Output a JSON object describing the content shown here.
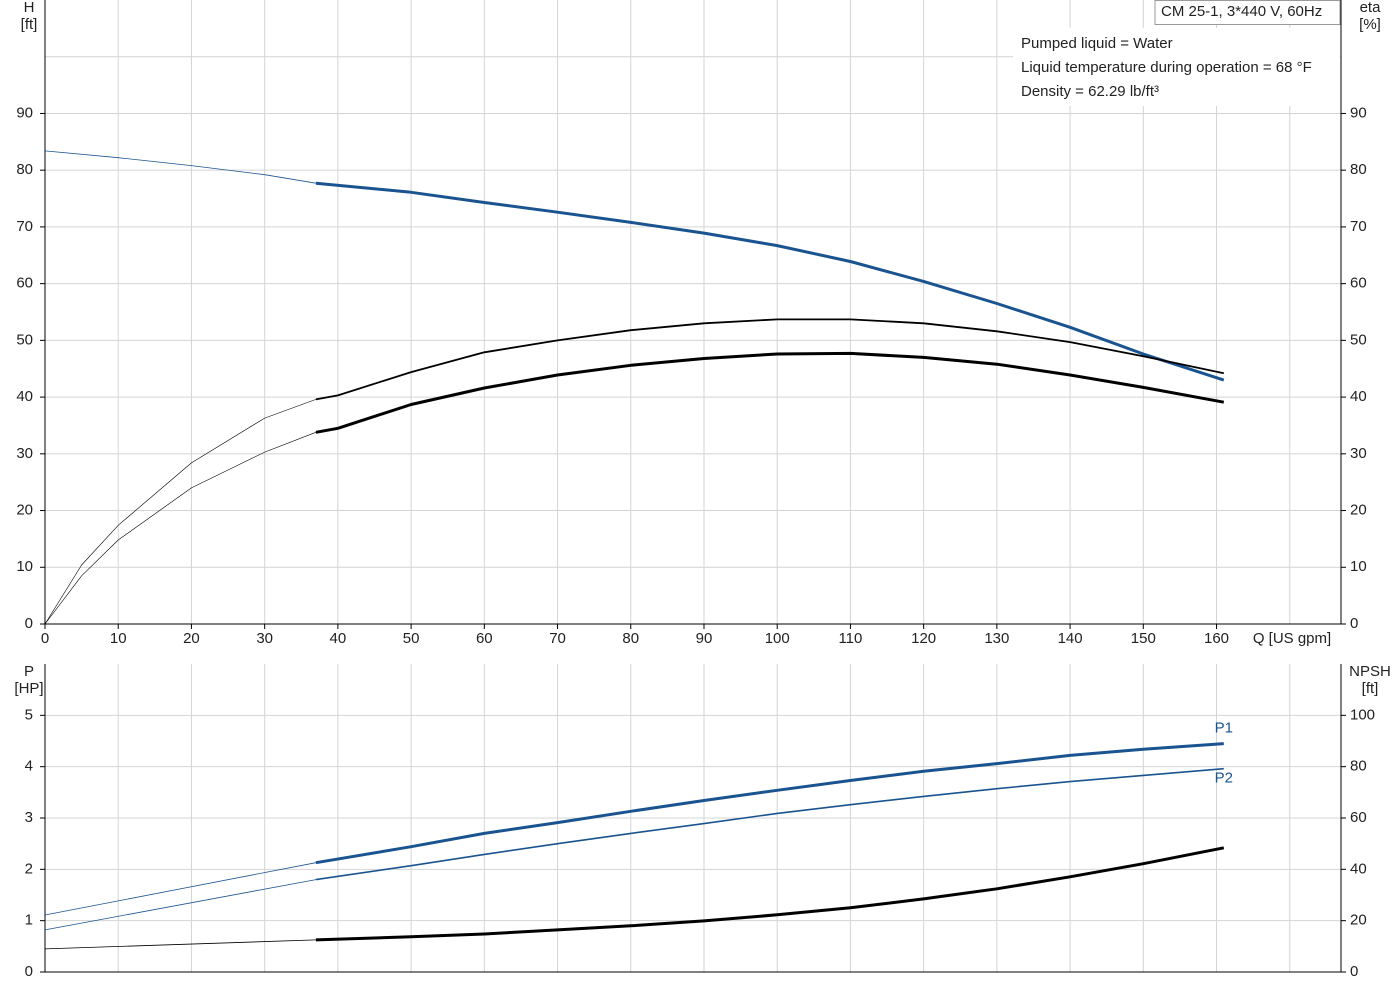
{
  "chart_data": [
    {
      "type": "line",
      "title": "CM 25-1, 3*440 V, 60Hz",
      "notes": [
        "Pumped liquid = Water",
        "Liquid temperature during operation = 68 °F",
        "Density = 62.29 lb/ft³"
      ],
      "ylabel": [
        "H",
        "[ft]"
      ],
      "y2label": [
        "eta",
        "[%]"
      ],
      "xlabel": "Q [US gpm]",
      "xlim": [
        0,
        177
      ],
      "ylim": [
        0,
        110
      ],
      "y2lim": [
        0,
        110
      ],
      "xticks": [
        0,
        10,
        20,
        30,
        40,
        50,
        60,
        70,
        80,
        90,
        100,
        110,
        120,
        130,
        140,
        150,
        160
      ],
      "xgrid": [
        0,
        10,
        20,
        30,
        40,
        50,
        60,
        70,
        80,
        90,
        100,
        110,
        120,
        130,
        140,
        150,
        160,
        170
      ],
      "yticks": [
        0,
        10,
        20,
        30,
        40,
        50,
        60,
        70,
        80,
        90
      ],
      "ygrid": [
        0,
        10,
        20,
        30,
        40,
        50,
        60,
        70,
        80,
        90,
        100
      ],
      "y2ticks": [
        0,
        10,
        20,
        30,
        40,
        50,
        60,
        70,
        80,
        90
      ],
      "series": [
        {
          "color": "#1a5490",
          "line_width": 0.8,
          "x": [
            0,
            10,
            20,
            30,
            37
          ],
          "values": [
            83.4,
            82.2,
            80.8,
            79.2,
            77.7
          ]
        },
        {
          "color": "#1a5490",
          "line_width": 3,
          "x": [
            37,
            50,
            60,
            70,
            80,
            90,
            100,
            110,
            120,
            130,
            140,
            150,
            161
          ],
          "values": [
            77.7,
            76.1,
            74.3,
            72.6,
            70.8,
            68.9,
            66.7,
            63.9,
            60.4,
            56.5,
            52.3,
            47.6,
            43.0
          ]
        },
        {
          "color": "#000000",
          "line_width": 0.6,
          "axis": "y2",
          "x": [
            0,
            5,
            10,
            20,
            30,
            37
          ],
          "values": [
            0,
            10.4,
            17.4,
            28.4,
            36.3,
            39.6
          ]
        },
        {
          "color": "#000000",
          "line_width": 1.8,
          "axis": "y2",
          "x": [
            37,
            40,
            50,
            60,
            70,
            80,
            90,
            100,
            110,
            120,
            130,
            140,
            150,
            161
          ],
          "values": [
            39.6,
            40.3,
            44.4,
            47.9,
            50.0,
            51.8,
            53.0,
            53.7,
            53.7,
            53.0,
            51.6,
            49.7,
            47.2,
            44.2
          ]
        },
        {
          "color": "#000000",
          "line_width": 0.6,
          "axis": "y2",
          "x": [
            0,
            5,
            10,
            20,
            30,
            37
          ],
          "values": [
            0,
            8.5,
            14.8,
            24.0,
            30.3,
            33.8
          ]
        },
        {
          "color": "#000000",
          "line_width": 3,
          "axis": "y2",
          "x": [
            37,
            40,
            50,
            60,
            70,
            80,
            90,
            100,
            110,
            120,
            130,
            140,
            150,
            161
          ],
          "values": [
            33.8,
            34.5,
            38.7,
            41.6,
            43.9,
            45.6,
            46.8,
            47.6,
            47.7,
            47.0,
            45.8,
            43.9,
            41.7,
            39.1
          ]
        }
      ]
    },
    {
      "type": "line",
      "ylabel": [
        "P",
        "[HP]"
      ],
      "y2label": [
        "NPSH",
        "[ft]"
      ],
      "xlim": [
        0,
        177
      ],
      "ylim": [
        0,
        6
      ],
      "y2lim": [
        0,
        120
      ],
      "xgrid": [
        0,
        10,
        20,
        30,
        40,
        50,
        60,
        70,
        80,
        90,
        100,
        110,
        120,
        130,
        140,
        150,
        160,
        170
      ],
      "yticks": [
        0,
        1,
        2,
        3,
        4,
        5
      ],
      "ygrid": [
        0,
        1,
        2,
        3,
        4,
        5
      ],
      "y2ticks": [
        0,
        20,
        40,
        60,
        80,
        100
      ],
      "series": [
        {
          "color": "#1a5490",
          "line_width": 0.8,
          "x": [
            0,
            37
          ],
          "values": [
            1.11,
            2.13
          ]
        },
        {
          "name": "P1",
          "name_side": "above",
          "color": "#1a5490",
          "line_width": 3,
          "x": [
            37,
            50,
            60,
            70,
            80,
            90,
            100,
            110,
            120,
            130,
            140,
            150,
            161
          ],
          "values": [
            2.13,
            2.44,
            2.7,
            2.91,
            3.13,
            3.34,
            3.54,
            3.73,
            3.91,
            4.06,
            4.22,
            4.34,
            4.45
          ]
        },
        {
          "color": "#1a5490",
          "line_width": 0.8,
          "x": [
            0,
            37
          ],
          "values": [
            0.82,
            1.8
          ]
        },
        {
          "name": "P2",
          "name_side": "below",
          "color": "#1a5490",
          "line_width": 1.6,
          "x": [
            37,
            50,
            60,
            70,
            80,
            90,
            100,
            110,
            120,
            130,
            140,
            150,
            161
          ],
          "values": [
            1.8,
            2.07,
            2.29,
            2.5,
            2.7,
            2.89,
            3.09,
            3.26,
            3.42,
            3.57,
            3.71,
            3.83,
            3.96
          ]
        },
        {
          "color": "#000000",
          "line_width": 0.8,
          "axis": "y2",
          "x": [
            0,
            37
          ],
          "values": [
            9.0,
            12.5
          ]
        },
        {
          "color": "#000000",
          "line_width": 3,
          "axis": "y2",
          "x": [
            37,
            50,
            60,
            70,
            80,
            90,
            100,
            110,
            120,
            130,
            140,
            150,
            161
          ],
          "values": [
            12.5,
            13.7,
            14.8,
            16.4,
            18.0,
            19.9,
            22.3,
            25.0,
            28.5,
            32.4,
            37.1,
            42.2,
            48.4
          ]
        }
      ]
    }
  ]
}
